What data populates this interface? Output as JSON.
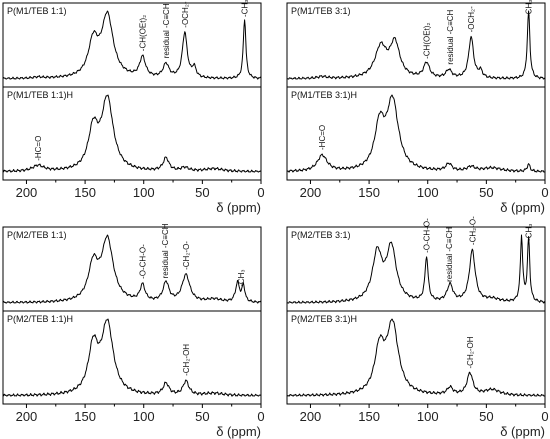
{
  "figure": {
    "xlabel": "δ (ppm)",
    "xticks": [
      200,
      150,
      100,
      50,
      0
    ]
  },
  "chart_data": [
    {
      "type": "line",
      "xlabel": "δ (ppm)",
      "xlim": [
        220,
        0
      ],
      "grid": false,
      "top": {
        "label": "P(M1/TEB 1:1)",
        "peaks": [
          [
            190,
            0.02,
            5
          ],
          [
            143,
            0.55,
            5
          ],
          [
            131,
            0.98,
            6
          ],
          [
            101,
            0.32,
            3
          ],
          [
            81,
            0.22,
            3
          ],
          [
            65,
            0.72,
            2.5
          ],
          [
            57,
            0.16,
            2
          ],
          [
            14,
            0.95,
            1.3
          ]
        ],
        "annotations": [
          {
            "ppm": 101,
            "text": "-CH(OEt)₂"
          },
          {
            "ppm": 81,
            "text": "residual -C≡CH"
          },
          {
            "ppm": 65,
            "text": "-OCH₂-"
          },
          {
            "ppm": 14,
            "text": "-CH₃"
          }
        ]
      },
      "bottom": {
        "label": "P(M1/TEB 1:1)H",
        "peaks": [
          [
            190,
            0.08,
            6
          ],
          [
            143,
            0.55,
            5
          ],
          [
            131,
            0.98,
            6
          ],
          [
            81,
            0.18,
            3
          ],
          [
            65,
            0.05,
            4
          ],
          [
            40,
            0.04,
            10
          ]
        ],
        "annotations": [
          {
            "ppm": 190,
            "text": "-HC=O"
          }
        ]
      }
    },
    {
      "type": "line",
      "xlabel": "δ (ppm)",
      "xlim": [
        220,
        0
      ],
      "grid": false,
      "top": {
        "label": "P(M1/TEB 3:1)",
        "peaks": [
          [
            190,
            0.03,
            5
          ],
          [
            140,
            0.45,
            6
          ],
          [
            128,
            0.5,
            5
          ],
          [
            101,
            0.22,
            3
          ],
          [
            82,
            0.12,
            3
          ],
          [
            63,
            0.6,
            2.5
          ],
          [
            55,
            0.1,
            2
          ],
          [
            14,
            0.98,
            1.3
          ]
        ],
        "annotations": [
          {
            "ppm": 101,
            "text": "-CH(OEt)₂"
          },
          {
            "ppm": 81,
            "text": "residual -C≡CH"
          },
          {
            "ppm": 63,
            "text": "-OCH₂-"
          },
          {
            "ppm": 14,
            "text": "-CH₃"
          }
        ]
      },
      "bottom": {
        "label": "P(M1/TEB 3:1)H",
        "peaks": [
          [
            190,
            0.22,
            5
          ],
          [
            141,
            0.6,
            5
          ],
          [
            130,
            0.95,
            6
          ],
          [
            82,
            0.1,
            3
          ],
          [
            63,
            0.06,
            4
          ],
          [
            14,
            0.1,
            1.5
          ],
          [
            45,
            0.05,
            10
          ]
        ],
        "annotations": [
          {
            "ppm": 190,
            "text": "-HC=O"
          }
        ]
      }
    },
    {
      "type": "line",
      "xlabel": "δ (ppm)",
      "xlim": [
        220,
        0
      ],
      "grid": false,
      "top": {
        "label": "P(M2/TEB 1:1)",
        "peaks": [
          [
            143,
            0.55,
            5
          ],
          [
            131,
            0.95,
            6
          ],
          [
            101,
            0.25,
            2.5
          ],
          [
            81,
            0.3,
            3
          ],
          [
            64,
            0.42,
            4
          ],
          [
            20,
            0.3,
            2
          ],
          [
            15,
            0.25,
            1.5
          ],
          [
            40,
            0.05,
            8
          ]
        ],
        "annotations": [
          {
            "ppm": 101,
            "text": "-O-CH-O-"
          },
          {
            "ppm": 82,
            "text": "residual -C≡CH"
          },
          {
            "ppm": 64,
            "text": "-CH₂-O-"
          },
          {
            "ppm": 17,
            "text": "-CH₃"
          }
        ]
      },
      "bottom": {
        "label": "P(M2/TEB 1:1)H",
        "peaks": [
          [
            143,
            0.6,
            5
          ],
          [
            131,
            0.9,
            6
          ],
          [
            81,
            0.15,
            3
          ],
          [
            64,
            0.18,
            3
          ],
          [
            40,
            0.03,
            10
          ]
        ],
        "annotations": [
          {
            "ppm": 64,
            "text": "-CH₂-OH"
          }
        ]
      }
    },
    {
      "type": "line",
      "xlabel": "δ (ppm)",
      "xlim": [
        220,
        0
      ],
      "grid": false,
      "top": {
        "label": "P(M2/TEB 3:1)",
        "peaks": [
          [
            143,
            0.7,
            5
          ],
          [
            131,
            0.78,
            5
          ],
          [
            101,
            0.65,
            1.6
          ],
          [
            81,
            0.25,
            3
          ],
          [
            62,
            0.75,
            3
          ],
          [
            20,
            0.95,
            1.2
          ],
          [
            14,
            0.92,
            1.2
          ],
          [
            45,
            0.05,
            8
          ]
        ],
        "annotations": [
          {
            "ppm": 101,
            "text": "-O-CH-O-"
          },
          {
            "ppm": 82,
            "text": "residual -C≡CH"
          },
          {
            "ppm": 62,
            "text": "-CH₂-O-"
          },
          {
            "ppm": 14,
            "text": "-CH₃"
          }
        ]
      },
      "bottom": {
        "label": "P(M2/TEB 3:1)H",
        "peaks": [
          [
            141,
            0.6,
            5
          ],
          [
            130,
            0.95,
            6
          ],
          [
            81,
            0.1,
            3
          ],
          [
            64,
            0.3,
            3
          ],
          [
            45,
            0.08,
            8
          ]
        ],
        "annotations": [
          {
            "ppm": 64,
            "text": "-CH₂-OH"
          }
        ]
      }
    }
  ]
}
